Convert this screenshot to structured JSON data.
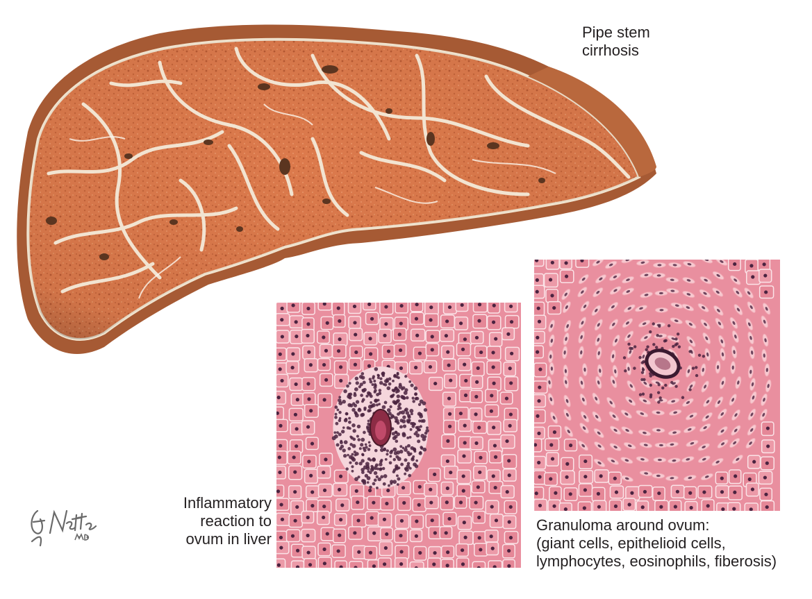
{
  "labels": {
    "pipe_stem": [
      "Pipe stem",
      "cirrhosis"
    ],
    "inflammatory": [
      "Inflammatory",
      "reaction to",
      "ovum in liver"
    ],
    "granuloma": [
      "Granuloma around ovum:",
      "(giant cells, epithelioid cells,",
      "lymphocytes, eosinophils, fiberosis)"
    ]
  },
  "signature": {
    "name": "F. Netter",
    "suffix": "M.D."
  },
  "colors": {
    "liver": "#d9774a",
    "liver_dark": "#a0522d",
    "fibrosis": "#f3e8d6",
    "tissue_pink": "#e98f9f",
    "tissue_light": "#f7c9d0",
    "nucleus": "#4a2340"
  }
}
